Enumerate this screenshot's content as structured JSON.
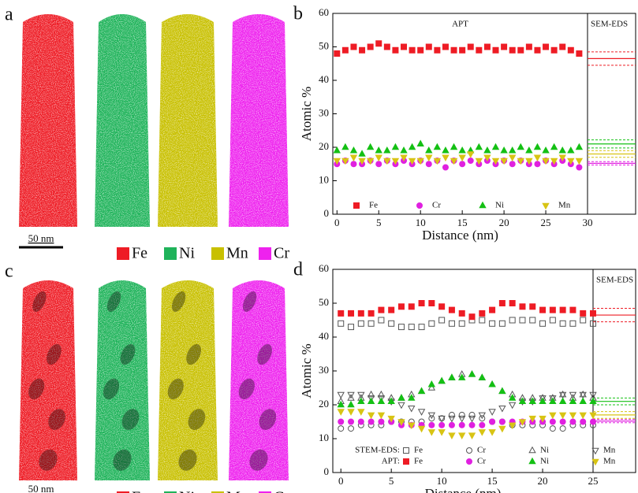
{
  "figure": {
    "panels": [
      {
        "label": "a",
        "scale_bar": "50 nm",
        "legend": [
          {
            "name": "Fe",
            "color": "#ee1c25"
          },
          {
            "name": "Ni",
            "color": "#1fb35a"
          },
          {
            "name": "Mn",
            "color": "#c8c000"
          },
          {
            "name": "Cr",
            "color": "#ee22ee"
          }
        ]
      },
      {
        "label": "c",
        "scale_bar": "50 nm",
        "legend": [
          {
            "name": "Fe",
            "color": "#ee1c25"
          },
          {
            "name": "Ni",
            "color": "#1fb35a"
          },
          {
            "name": "Mn",
            "color": "#c8c000"
          },
          {
            "name": "Cr",
            "color": "#ee22ee"
          }
        ]
      }
    ]
  },
  "chart_data": [
    {
      "type": "scatter",
      "panel_label": "b",
      "annotations": [
        "APT",
        "SEM-EDS"
      ],
      "xlabel": "Distance (nm)",
      "ylabel": "Atomic %",
      "xlim": [
        -0.5,
        30
      ],
      "xticks": [
        0,
        5,
        10,
        15,
        20,
        25,
        30
      ],
      "ylim": [
        0,
        60
      ],
      "yticks": [
        0,
        10,
        20,
        30,
        40,
        50,
        60
      ],
      "legend": "bottom",
      "x": [
        0,
        1,
        2,
        3,
        4,
        5,
        6,
        7,
        8,
        9,
        10,
        11,
        12,
        13,
        14,
        15,
        16,
        17,
        18,
        19,
        20,
        21,
        22,
        23,
        24,
        25,
        26,
        27,
        28,
        29
      ],
      "series": [
        {
          "name": "Fe",
          "color": "#ee1c25",
          "marker": "square",
          "filled": true,
          "values": [
            48,
            49,
            50,
            49,
            50,
            51,
            50,
            49,
            50,
            49,
            49,
            50,
            49,
            50,
            49,
            49,
            50,
            49,
            50,
            49,
            50,
            49,
            49,
            50,
            49,
            50,
            49,
            50,
            49,
            48
          ]
        },
        {
          "name": "Cr",
          "color": "#e020e0",
          "marker": "circle",
          "filled": true,
          "values": [
            15,
            16,
            15,
            15,
            16,
            15,
            16,
            15,
            16,
            15,
            16,
            15,
            16,
            14,
            16,
            15,
            16,
            15,
            16,
            15,
            16,
            15,
            16,
            15,
            15,
            16,
            15,
            16,
            15,
            14
          ]
        },
        {
          "name": "Ni",
          "color": "#14c014",
          "marker": "triangle-up",
          "filled": true,
          "values": [
            19,
            20,
            19,
            18,
            20,
            19,
            19,
            20,
            19,
            20,
            21,
            19,
            20,
            19,
            20,
            19,
            19,
            20,
            19,
            20,
            19,
            19,
            20,
            19,
            20,
            19,
            20,
            19,
            19,
            20
          ]
        },
        {
          "name": "Mn",
          "color": "#d8c414",
          "marker": "triangle-down",
          "filled": true,
          "values": [
            16,
            16,
            17,
            16,
            16,
            17,
            16,
            16,
            17,
            16,
            16,
            17,
            16,
            17,
            16,
            17,
            18,
            16,
            17,
            16,
            16,
            17,
            16,
            16,
            17,
            16,
            16,
            17,
            16,
            16
          ]
        }
      ],
      "reference": [
        {
          "color": "#ee1c25",
          "value": 46.5,
          "error": 2
        },
        {
          "color": "#14c014",
          "value": 21,
          "error": 1.2
        },
        {
          "color": "#d8c414",
          "value": 18,
          "error": 1
        },
        {
          "color": "#e020e0",
          "value": 15.2,
          "error": 0.5
        }
      ]
    },
    {
      "type": "scatter",
      "panel_label": "d",
      "annotations": [
        "SEM-EDS"
      ],
      "xlabel": "Distance (nm)",
      "ylabel": "Atomic %",
      "xlim": [
        -0.8,
        25
      ],
      "xticks": [
        0,
        5,
        10,
        15,
        20,
        25
      ],
      "ylim": [
        0,
        60
      ],
      "yticks": [
        0,
        10,
        20,
        30,
        40,
        50,
        60
      ],
      "legend": "bottom",
      "x": [
        0,
        1,
        2,
        3,
        4,
        5,
        6,
        7,
        8,
        9,
        10,
        11,
        12,
        13,
        14,
        15,
        16,
        17,
        18,
        19,
        20,
        21,
        22,
        23,
        24,
        25
      ],
      "series_groups": [
        {
          "name": "STEM-EDS:",
          "series": [
            {
              "name": "Fe",
              "color": "#555555",
              "marker": "square",
              "filled": false,
              "values": [
                44,
                43,
                44,
                44,
                45,
                44,
                43,
                43,
                43,
                44,
                45,
                44,
                44,
                45,
                45,
                44,
                44,
                45,
                45,
                45,
                44,
                45,
                44,
                44,
                45,
                44
              ]
            },
            {
              "name": "Cr",
              "color": "#555555",
              "marker": "circle",
              "filled": false,
              "values": [
                13,
                13,
                14,
                14,
                14,
                15,
                15,
                15,
                15,
                16,
                16,
                17,
                17,
                17,
                16,
                15,
                15,
                14,
                14,
                14,
                14,
                13,
                13,
                14,
                14,
                14
              ]
            },
            {
              "name": "Ni",
              "color": "#555555",
              "marker": "triangle-up",
              "filled": false,
              "values": [
                21,
                22,
                22,
                23,
                23,
                22,
                22,
                23,
                24,
                25,
                27,
                28,
                29,
                29,
                28,
                26,
                24,
                23,
                22,
                22,
                22,
                22,
                23,
                22,
                23,
                22
              ]
            },
            {
              "name": "Mn",
              "color": "#555555",
              "marker": "triangle-down",
              "filled": false,
              "values": [
                23,
                23,
                23,
                22,
                22,
                21,
                20,
                19,
                18,
                17,
                16,
                16,
                16,
                16,
                17,
                18,
                19,
                20,
                21,
                21,
                22,
                22,
                23,
                23,
                23,
                23
              ]
            }
          ]
        },
        {
          "name": "APT:",
          "series": [
            {
              "name": "Fe",
              "color": "#ee1c25",
              "marker": "square",
              "filled": true,
              "values": [
                47,
                47,
                47,
                47,
                48,
                48,
                49,
                49,
                50,
                50,
                49,
                48,
                47,
                46,
                47,
                48,
                50,
                50,
                49,
                49,
                48,
                48,
                48,
                48,
                47,
                47
              ]
            },
            {
              "name": "Cr",
              "color": "#e020e0",
              "marker": "circle",
              "filled": true,
              "values": [
                15,
                15,
                15,
                15,
                15,
                15,
                14,
                14,
                14,
                14,
                14,
                14,
                14,
                14,
                14,
                15,
                15,
                15,
                15,
                15,
                15,
                15,
                15,
                15,
                15,
                15
              ]
            },
            {
              "name": "Ni",
              "color": "#14c014",
              "marker": "triangle-up",
              "filled": true,
              "values": [
                20,
                20,
                21,
                21,
                21,
                21,
                22,
                22,
                24,
                26,
                27,
                28,
                28,
                29,
                28,
                26,
                24,
                22,
                21,
                21,
                21,
                21,
                21,
                21,
                21,
                21
              ]
            },
            {
              "name": "Mn",
              "color": "#d8c414",
              "marker": "triangle-down",
              "filled": true,
              "values": [
                18,
                18,
                18,
                17,
                17,
                16,
                15,
                14,
                13,
                12,
                12,
                11,
                11,
                11,
                12,
                12,
                13,
                14,
                15,
                16,
                16,
                17,
                17,
                17,
                17,
                17
              ]
            }
          ]
        }
      ],
      "reference": [
        {
          "color": "#ee1c25",
          "value": 46.5,
          "error": 2
        },
        {
          "color": "#14c014",
          "value": 21,
          "error": 1
        },
        {
          "color": "#d8c414",
          "value": 17,
          "error": 1
        },
        {
          "color": "#e020e0",
          "value": 15.2,
          "error": 0.5
        }
      ]
    }
  ]
}
